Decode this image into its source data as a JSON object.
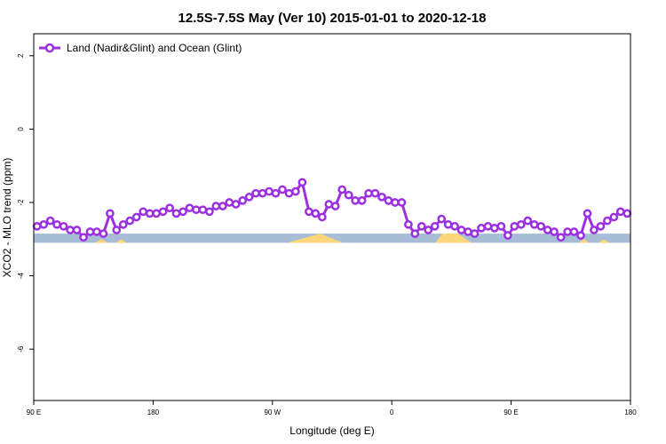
{
  "chart_data": {
    "type": "line",
    "title": "12.5S-7.5S May (Ver 10)   2015-01-01 to 2020-12-18",
    "xlabel": "Longitude (deg E)",
    "ylabel": "XCO2 - MLO trend (ppm)",
    "x_ticks": [
      {
        "value": 90,
        "label": "90 E"
      },
      {
        "value": 180,
        "label": "180"
      },
      {
        "value": 270,
        "label": "90 W"
      },
      {
        "value": 360,
        "label": "0"
      },
      {
        "value": 450,
        "label": "90 E"
      },
      {
        "value": 540,
        "label": "180"
      }
    ],
    "y_ticks": [
      {
        "value": 2,
        "label": "2"
      },
      {
        "value": 0,
        "label": "0"
      },
      {
        "value": -2,
        "label": "-2"
      },
      {
        "value": -4,
        "label": "-4"
      },
      {
        "value": -6,
        "label": "-6"
      }
    ],
    "xlim": [
      90,
      540
    ],
    "ylim": [
      -7.4,
      2.6
    ],
    "grid": false,
    "legend_position": "top-left",
    "series": [
      {
        "name": "Land (Nadir&Glint) and Ocean (Glint)",
        "color": "#9b30e0",
        "marker": "open-circle",
        "x": [
          92.5,
          97.5,
          102.5,
          107.5,
          112.5,
          117.5,
          122.5,
          127.5,
          132.5,
          137.5,
          142.5,
          147.5,
          152.5,
          157.5,
          162.5,
          167.5,
          172.5,
          177.5,
          182.5,
          187.5,
          192.5,
          197.5,
          202.5,
          207.5,
          212.5,
          217.5,
          222.5,
          227.5,
          232.5,
          237.5,
          242.5,
          247.5,
          252.5,
          257.5,
          262.5,
          267.5,
          272.5,
          277.5,
          282.5,
          287.5,
          292.5,
          297.5,
          302.5,
          307.5,
          312.5,
          317.5,
          322.5,
          327.5,
          332.5,
          337.5,
          342.5,
          347.5,
          352.5,
          357.5,
          362.5,
          367.5,
          372.5,
          377.5,
          382.5,
          387.5,
          392.5,
          397.5,
          402.5,
          407.5,
          412.5,
          417.5,
          422.5,
          427.5,
          432.5,
          437.5,
          442.5,
          447.5,
          452.5,
          457.5,
          462.5,
          467.5,
          472.5,
          477.5,
          482.5,
          487.5,
          492.5,
          497.5,
          502.5,
          507.5,
          512.5,
          517.5,
          522.5,
          527.5,
          532.5,
          537.5
        ],
        "values": [
          -2.65,
          -2.6,
          -2.5,
          -2.6,
          -2.65,
          -2.75,
          -2.75,
          -2.95,
          -2.8,
          -2.8,
          -2.85,
          -2.3,
          -2.75,
          -2.6,
          -2.5,
          -2.4,
          -2.25,
          -2.3,
          -2.3,
          -2.25,
          -2.15,
          -2.3,
          -2.25,
          -2.15,
          -2.2,
          -2.2,
          -2.25,
          -2.1,
          -2.1,
          -2.0,
          -2.05,
          -1.95,
          -1.85,
          -1.75,
          -1.75,
          -1.7,
          -1.75,
          -1.65,
          -1.75,
          -1.7,
          -1.45,
          -2.25,
          -2.3,
          -2.4,
          -2.05,
          -2.1,
          -1.65,
          -1.8,
          -1.95,
          -1.95,
          -1.75,
          -1.75,
          -1.85,
          -1.95,
          -2.0,
          -2.0,
          -2.6,
          -2.85,
          -2.65,
          -2.75,
          -2.65,
          -2.45,
          -2.6,
          -2.65,
          -2.75,
          -2.8,
          -2.85,
          -2.7,
          -2.65,
          -2.7,
          -2.65,
          -2.9,
          -2.65,
          -2.6,
          -2.5,
          -2.6,
          -2.65,
          -2.75,
          -2.8,
          -2.95,
          -2.8,
          -2.8,
          -2.9,
          -2.3,
          -2.75,
          -2.65,
          -2.5,
          -2.4,
          -2.25,
          -2.3
        ]
      }
    ],
    "surface_band": {
      "y_top": -2.85,
      "y_bottom": -3.1,
      "ocean_color": "#a7bcd7",
      "land_color": "#fcd777",
      "land_segments": [
        {
          "x": [
            281,
            306,
            323
          ],
          "y": [
            -3.1,
            -2.85,
            -3.1
          ]
        },
        {
          "x": [
            393,
            398,
            405,
            410,
            420
          ],
          "y": [
            -3.1,
            -2.85,
            -2.85,
            -2.85,
            -3.1
          ]
        },
        {
          "x": [
            136,
            141,
            146
          ],
          "y": [
            -3.1,
            -3.0,
            -3.1
          ]
        },
        {
          "x": [
            152,
            156,
            160
          ],
          "y": [
            -3.1,
            -3.0,
            -3.1
          ]
        },
        {
          "x": [
            501,
            505,
            509
          ],
          "y": [
            -3.1,
            -3.0,
            -3.1
          ]
        },
        {
          "x": [
            516,
            520,
            524
          ],
          "y": [
            -3.1,
            -3.0,
            -3.1
          ]
        }
      ]
    }
  }
}
